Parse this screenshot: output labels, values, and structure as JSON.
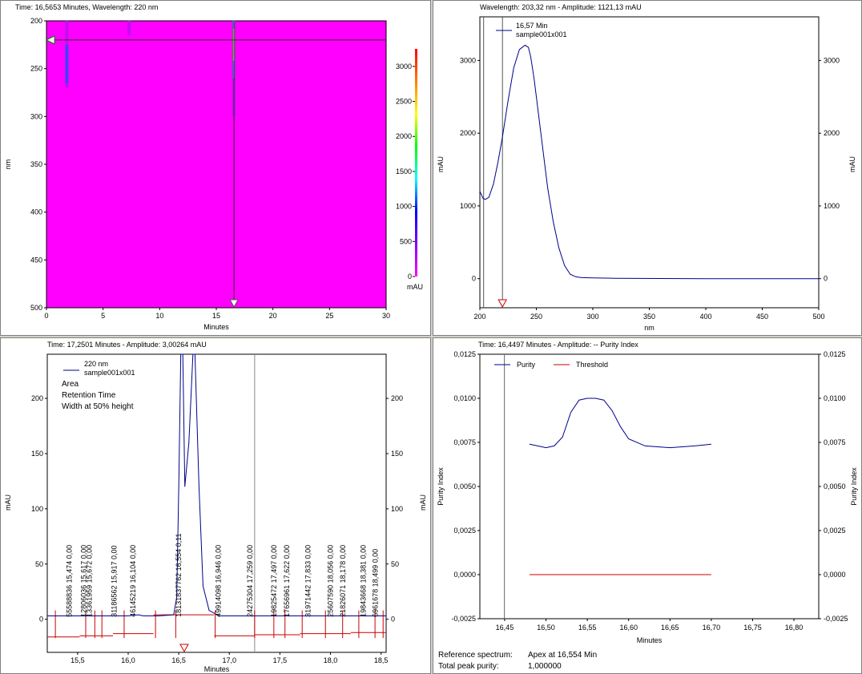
{
  "panels": {
    "contour_title": "Time: 16,5653 Minutes, Wavelength: 220 nm",
    "spectrum_title": "Wavelength: 203,32 nm - Amplitude: 1121,13 mAU",
    "chromatogram_title": "Time: 17,2501 Minutes - Amplitude: 3,00264 mAU",
    "purity_title": "Time: 16,4497 Minutes - Amplitude: -- Purity Index"
  },
  "colors": {
    "background": "#ff00ff",
    "band": "#c010f0",
    "trace_blue": "#00008b",
    "baseline_red": "#cc0000",
    "grid_line": "#808080"
  },
  "purity_footer": {
    "ref_label": "Reference spectrum:",
    "ref_value": "Apex at 16,554 Min",
    "total_label": "Total peak purity:",
    "total_value": "1,000000"
  },
  "chart_data": [
    {
      "type": "heatmap",
      "title": "Time: 16,5653 Minutes, Wavelength: 220 nm",
      "xlabel": "Minutes",
      "ylabel": "nm",
      "xlim": [
        0,
        30
      ],
      "ylim": [
        200,
        500
      ],
      "x_ticks": [
        "0",
        "5",
        "10",
        "15",
        "20",
        "25",
        "30"
      ],
      "y_ticks": [
        "200",
        "250",
        "300",
        "350",
        "400",
        "450",
        "500"
      ],
      "colorbar_label": "mAU",
      "colorbar_ticks": [
        "0",
        "500",
        "1000",
        "1500",
        "2000",
        "2500",
        "3000"
      ],
      "cursor_time": 16.5653,
      "cursor_wavelength": 220,
      "bands": [
        {
          "time": 1.8,
          "nm_start": 200,
          "nm_end": 270
        },
        {
          "time": 7.3,
          "nm_start": 200,
          "nm_end": 215
        },
        {
          "time": 16.55,
          "nm_start": 200,
          "nm_end": 300
        }
      ]
    },
    {
      "type": "line",
      "title": "Wavelength: 203,32 nm - Amplitude: 1121,13 mAU",
      "xlabel": "nm",
      "ylabel": "mAU",
      "ylabel_right": "mAU",
      "xlim": [
        200,
        500
      ],
      "ylim": [
        -400,
        3600
      ],
      "x_ticks": [
        "200",
        "250",
        "300",
        "350",
        "400",
        "450",
        "500"
      ],
      "y_ticks": [
        "0",
        "1000",
        "2000",
        "3000"
      ],
      "legend": [
        "16,57 Min",
        "sample001x001"
      ],
      "cursor_nm": [
        203.32,
        220
      ],
      "series": [
        {
          "name": "16,57 Min",
          "x": [
            200,
            203,
            205,
            208,
            212,
            216,
            220,
            225,
            230,
            235,
            240,
            243,
            245,
            248,
            252,
            256,
            260,
            265,
            270,
            275,
            280,
            285,
            290,
            300,
            320,
            360,
            400,
            450,
            500
          ],
          "y": [
            1200,
            1100,
            1090,
            1120,
            1300,
            1600,
            1950,
            2450,
            2900,
            3150,
            3210,
            3180,
            3050,
            2750,
            2250,
            1750,
            1250,
            780,
            420,
            180,
            60,
            25,
            15,
            10,
            5,
            2,
            0,
            0,
            0
          ]
        }
      ]
    },
    {
      "type": "line",
      "title": "Time: 17,2501 Minutes - Amplitude: 3,00264 mAU",
      "xlabel": "Minutes",
      "ylabel": "mAU",
      "ylabel_right": "mAU",
      "xlim": [
        15.2,
        18.55
      ],
      "ylim": [
        -30,
        240
      ],
      "x_ticks": [
        "15,5",
        "16,0",
        "16,5",
        "17,0",
        "17,5",
        "18,0",
        "18,5"
      ],
      "y_ticks": [
        "0",
        "50",
        "100",
        "150",
        "200"
      ],
      "legend": [
        "220 nm",
        "sample001x001"
      ],
      "label_heads": [
        "Area",
        "Retention Time",
        "Width at 50% height"
      ],
      "cursor_time": 17.2501,
      "series": [
        {
          "name": "220 nm",
          "x": [
            15.2,
            15.5,
            15.8,
            16.0,
            16.1,
            16.15,
            16.3,
            16.45,
            16.48,
            16.5,
            16.52,
            16.54,
            16.56,
            16.6,
            16.64,
            16.66,
            16.7,
            16.74,
            16.8,
            16.9,
            17.0,
            17.2,
            17.5,
            17.8,
            18.0,
            18.3,
            18.55
          ],
          "y": [
            3,
            3,
            3,
            3,
            4,
            3,
            3,
            4,
            20,
            120,
            240,
            240,
            120,
            160,
            240,
            240,
            120,
            30,
            8,
            3,
            3,
            3,
            3,
            3,
            3,
            3,
            3
          ]
        }
      ],
      "peak_labels": [
        {
          "rt": 15.474,
          "text": "55588836  15,474  0,00"
        },
        {
          "rt": 15.617,
          "text": "12806036  15,617  0,00"
        },
        {
          "rt": 15.672,
          "text": "13361959  15,672  0,00"
        },
        {
          "rt": 15.917,
          "text": "31186562  15,917  0,00"
        },
        {
          "rt": 16.104,
          "text": "46145219  16,104  0,00"
        },
        {
          "rt": 16.554,
          "text": "18131837762  16,554  0,11"
        },
        {
          "rt": 16.946,
          "text": "49914098  16,946  0,00"
        },
        {
          "rt": 17.259,
          "text": "24275304  17,259  0,00"
        },
        {
          "rt": 17.497,
          "text": "19825472  17,497  0,00"
        },
        {
          "rt": 17.622,
          "text": "17656961  17,622  0,00"
        },
        {
          "rt": 17.833,
          "text": "31971442  17,833  0,00"
        },
        {
          "rt": 18.056,
          "text": "25607590  18,056  0,00"
        },
        {
          "rt": 18.178,
          "text": "21826071  18,178  0,00"
        },
        {
          "rt": 18.381,
          "text": "19843668  18,381  0,00"
        },
        {
          "rt": 18.499,
          "text": "6961678  18,499  0,00"
        }
      ],
      "baseline_segments": [
        {
          "x1": 15.2,
          "x2": 15.52,
          "y": -16
        },
        {
          "x1": 15.52,
          "x2": 15.85,
          "y": -15
        },
        {
          "x1": 15.85,
          "x2": 16.25,
          "y": -13
        },
        {
          "x1": 16.25,
          "x2": 16.85,
          "y": 4
        },
        {
          "x1": 16.85,
          "x2": 17.25,
          "y": -15
        },
        {
          "x1": 17.25,
          "x2": 17.7,
          "y": -14
        },
        {
          "x1": 17.7,
          "x2": 18.2,
          "y": -13
        },
        {
          "x1": 18.2,
          "x2": 18.55,
          "y": -12
        }
      ],
      "integration_marks": [
        15.28,
        15.58,
        15.67,
        15.74,
        15.96,
        16.27,
        16.47,
        16.86,
        17.25,
        17.44,
        17.55,
        17.72,
        17.95,
        18.12,
        18.28,
        18.44,
        18.52
      ]
    },
    {
      "type": "line",
      "title": "Time: 16,4497 Minutes - Amplitude: -- Purity Index",
      "xlabel": "Minutes",
      "ylabel": "Purity Index",
      "ylabel_right": "Purity Index",
      "xlim": [
        16.42,
        16.83
      ],
      "ylim": [
        -0.0025,
        0.0125
      ],
      "x_ticks": [
        "16,45",
        "16,50",
        "16,55",
        "16,60",
        "16,65",
        "16,70",
        "16,75",
        "16,80"
      ],
      "y_ticks": [
        "-0,0025",
        "0,0000",
        "0,0025",
        "0,0050",
        "0,0075",
        "0,0100",
        "0,0125"
      ],
      "cursor_time": 16.4497,
      "series": [
        {
          "name": "Purity",
          "x": [
            16.48,
            16.49,
            16.5,
            16.51,
            16.52,
            16.53,
            16.54,
            16.55,
            16.56,
            16.57,
            16.58,
            16.59,
            16.6,
            16.62,
            16.65,
            16.68,
            16.7
          ],
          "y": [
            0.0074,
            0.0073,
            0.0072,
            0.0073,
            0.0078,
            0.0092,
            0.0099,
            0.01,
            0.01,
            0.0099,
            0.0093,
            0.0084,
            0.0077,
            0.0073,
            0.0072,
            0.0073,
            0.0074
          ]
        },
        {
          "name": "Threshold",
          "x": [
            16.48,
            16.7
          ],
          "y": [
            0.0,
            0.0
          ]
        }
      ]
    }
  ]
}
